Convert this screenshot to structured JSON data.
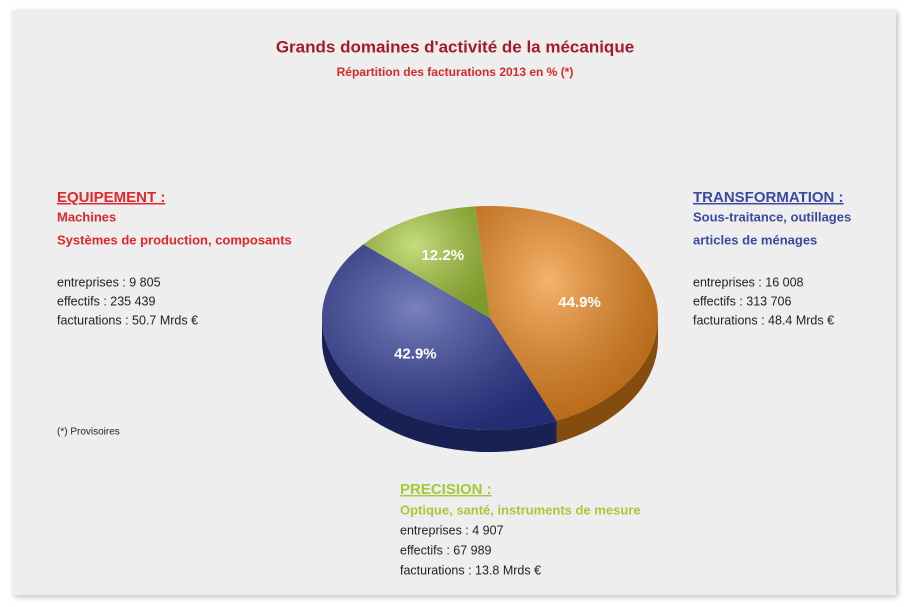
{
  "chart_data": {
    "type": "pie",
    "title": "Grands domaines d'activité de la mécanique",
    "subtitle": "Répartition des  facturations 2013 en % (*)",
    "categories": [
      "EQUIPEMENT :",
      "TRANSFORMATION :",
      "PRECISION :"
    ],
    "values": [
      44.9,
      42.9,
      12.2
    ],
    "value_labels": [
      "44.9%",
      "42.9%",
      "12.2%"
    ],
    "colors": [
      "#f28a1c",
      "#2f3c99",
      "#a8cc3a"
    ],
    "heading_colors": [
      "#e3262b",
      "#3a4aa0",
      "#a6c93a"
    ],
    "details": [
      {
        "descriptions": [
          "Machines",
          "Systèmes de production, composants"
        ],
        "lines": [
          "entreprises : 9 805",
          "effectifs : 235 439",
          "facturations : 50.7 Mrds €"
        ]
      },
      {
        "descriptions": [
          "Sous-traitance, outillages",
          "articles de ménages"
        ],
        "lines": [
          "entreprises : 16 008",
          "effectifs : 313 706",
          "facturations : 48.4 Mrds €"
        ]
      },
      {
        "descriptions": [
          "Optique, santé, instruments de mesure"
        ],
        "lines": [
          "entreprises : 4 907",
          "effectifs : 67 989",
          "facturations : 13.8 Mrds €"
        ]
      }
    ],
    "note": "(*) Provisoires"
  }
}
